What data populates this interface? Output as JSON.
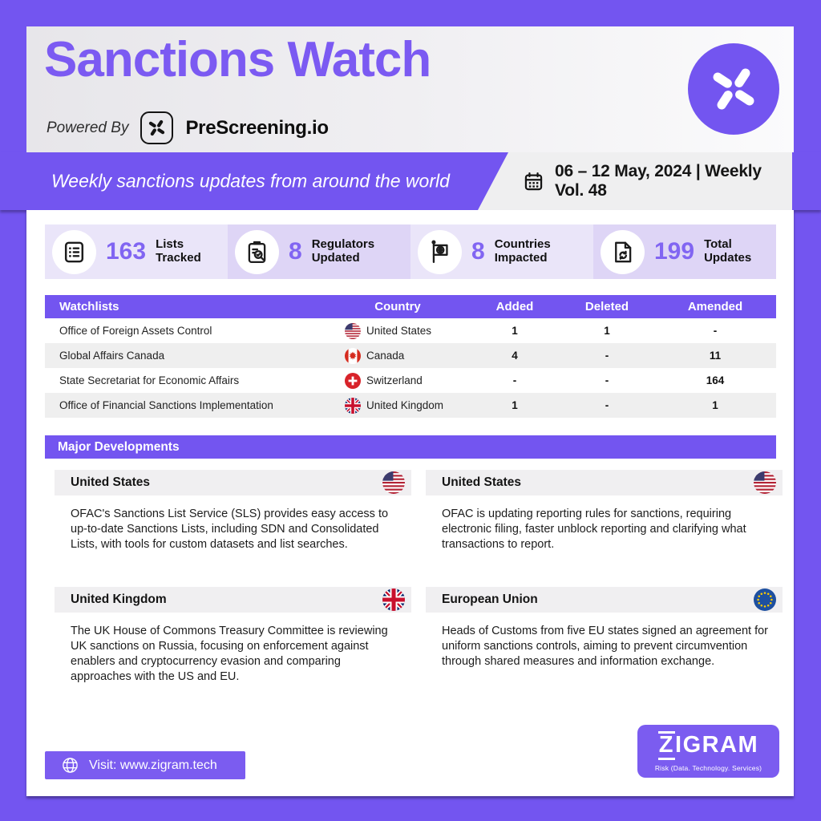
{
  "colors": {
    "purple": "#7355f0",
    "title_purple": "#7b5af2",
    "number_purple": "#8165f2",
    "stat_card_light": "#eae5f9",
    "stat_card_dark": "#ded5f6",
    "row_alt_gray": "#efefef"
  },
  "header": {
    "title": "Sanctions Watch",
    "powered_by_label": "Powered By",
    "brand_name": "PreScreening.io",
    "brand_icon": "pinwheel-icon",
    "logo_icon": "pinwheel-icon"
  },
  "banner": {
    "tagline": "Weekly sanctions updates from around the world",
    "calendar_icon": "calendar-icon",
    "date_text": "06 – 12 May, 2024 | Weekly Vol. 48"
  },
  "stats": [
    {
      "value": "163",
      "label": "Lists Tracked",
      "icon": "lists-icon"
    },
    {
      "value": "8",
      "label": "Regulators Updated",
      "icon": "regulators-icon"
    },
    {
      "value": "8",
      "label": "Countries Impacted",
      "icon": "countries-icon"
    },
    {
      "value": "199",
      "label": "Total Updates",
      "icon": "updates-icon"
    }
  ],
  "watchlist_table": {
    "headers": [
      "Watchlists",
      "Country",
      "Added",
      "Deleted",
      "Amended"
    ],
    "rows": [
      {
        "watchlist": "Office of Foreign Assets Control",
        "country": "United States",
        "flag": "us",
        "added": "1",
        "deleted": "1",
        "amended": "-"
      },
      {
        "watchlist": "Global Affairs Canada",
        "country": "Canada",
        "flag": "ca",
        "added": "4",
        "deleted": "-",
        "amended": "11"
      },
      {
        "watchlist": "State Secretariat for Economic Affairs",
        "country": "Switzerland",
        "flag": "ch",
        "added": "-",
        "deleted": "-",
        "amended": "164"
      },
      {
        "watchlist": "Office of Financial Sanctions Implementation",
        "country": "United Kingdom",
        "flag": "gb",
        "added": "1",
        "deleted": "-",
        "amended": "1"
      }
    ]
  },
  "developments": {
    "section_title": "Major Developments",
    "cards": [
      {
        "country": "United States",
        "flag": "us",
        "text": "OFAC's Sanctions List Service (SLS) provides easy access to up-to-date Sanctions Lists, including SDN and Consolidated Lists, with tools for custom datasets and list searches."
      },
      {
        "country": "United States",
        "flag": "us",
        "text": "OFAC is updating reporting rules for sanctions, requiring electronic filing, faster unblock reporting and clarifying what transactions to report."
      },
      {
        "country": "United Kingdom",
        "flag": "gb",
        "text": "The UK House of Commons Treasury Committee is reviewing UK sanctions on Russia, focusing on enforcement against enablers and cryptocurrency evasion and comparing approaches with the US and EU."
      },
      {
        "country": "European Union",
        "flag": "eu",
        "text": "Heads of Customs from five EU states signed an agreement for uniform sanctions controls, aiming to prevent circumvention through shared measures and information exchange."
      }
    ]
  },
  "footer": {
    "visit_label": "Visit: www.zigram.tech",
    "globe_icon": "globe-icon",
    "logo_text": "ZIGRAM",
    "logo_tagline": "Risk (Data. Technology. Services)"
  }
}
